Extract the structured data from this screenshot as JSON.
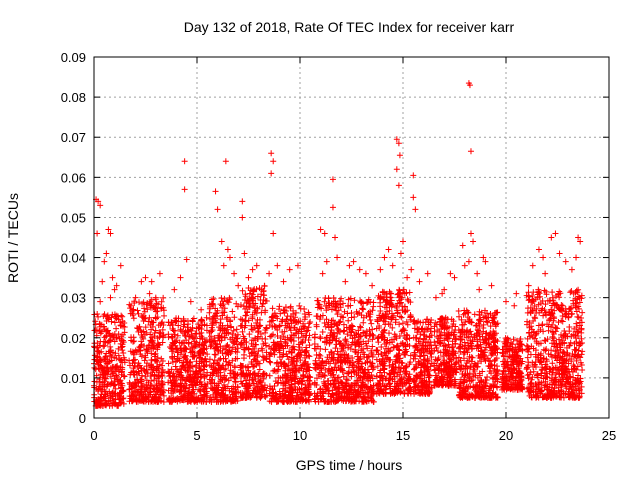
{
  "chart_data": {
    "type": "scatter",
    "title": "Day 132 of 2018, Rate Of TEC Index for receiver karr",
    "xlabel": "GPS time / hours",
    "ylabel": "ROTI / TECUs",
    "xlim": [
      0,
      25
    ],
    "ylim": [
      0,
      0.09
    ],
    "xticks": [
      0,
      5,
      10,
      15,
      20,
      25
    ],
    "xtick_labels": [
      "0",
      "5",
      "10",
      "15",
      "20",
      "25"
    ],
    "yticks": [
      0,
      0.01,
      0.02,
      0.03,
      0.04,
      0.05,
      0.06,
      0.07,
      0.08,
      0.09
    ],
    "ytick_labels": [
      "0",
      "0.01",
      "0.02",
      "0.03",
      "0.04",
      "0.05",
      "0.06",
      "0.07",
      "0.08",
      "0.09"
    ],
    "grid": true,
    "marker": "+",
    "color": "#ff0000",
    "series": [
      {
        "name": "ROTI",
        "points": [
          [
            0.1,
            0.0545
          ],
          [
            0.2,
            0.054
          ],
          [
            0.3,
            0.053
          ],
          [
            0.15,
            0.046
          ],
          [
            0.5,
            0.039
          ],
          [
            0.7,
            0.047
          ],
          [
            0.8,
            0.046
          ],
          [
            0.6,
            0.041
          ],
          [
            0.9,
            0.035
          ],
          [
            1.1,
            0.033
          ],
          [
            1.3,
            0.038
          ],
          [
            0.4,
            0.034
          ],
          [
            1.0,
            0.032
          ],
          [
            0.3,
            0.029
          ],
          [
            0.8,
            0.03
          ],
          [
            2.3,
            0.034
          ],
          [
            2.5,
            0.035
          ],
          [
            2.8,
            0.034
          ],
          [
            3.2,
            0.036
          ],
          [
            2.7,
            0.031
          ],
          [
            3.0,
            0.03
          ],
          [
            4.4,
            0.064
          ],
          [
            4.4,
            0.057
          ],
          [
            4.5,
            0.0395
          ],
          [
            4.2,
            0.035
          ],
          [
            3.9,
            0.032
          ],
          [
            4.7,
            0.029
          ],
          [
            5.2,
            0.027
          ],
          [
            5.9,
            0.0565
          ],
          [
            6.0,
            0.052
          ],
          [
            6.4,
            0.064
          ],
          [
            6.2,
            0.044
          ],
          [
            6.5,
            0.042
          ],
          [
            6.6,
            0.04
          ],
          [
            6.3,
            0.038
          ],
          [
            6.8,
            0.036
          ],
          [
            7.2,
            0.054
          ],
          [
            7.2,
            0.05
          ],
          [
            7.3,
            0.041
          ],
          [
            7.5,
            0.035
          ],
          [
            7.0,
            0.033
          ],
          [
            7.7,
            0.037
          ],
          [
            7.9,
            0.038
          ],
          [
            8.6,
            0.066
          ],
          [
            8.7,
            0.064
          ],
          [
            8.6,
            0.061
          ],
          [
            8.7,
            0.046
          ],
          [
            8.9,
            0.038
          ],
          [
            8.5,
            0.036
          ],
          [
            9.2,
            0.034
          ],
          [
            9.5,
            0.037
          ],
          [
            9.9,
            0.038
          ],
          [
            11.0,
            0.047
          ],
          [
            11.2,
            0.046
          ],
          [
            11.3,
            0.039
          ],
          [
            11.1,
            0.036
          ],
          [
            11.6,
            0.0595
          ],
          [
            11.6,
            0.0525
          ],
          [
            11.7,
            0.045
          ],
          [
            11.8,
            0.04
          ],
          [
            12.4,
            0.038
          ],
          [
            12.6,
            0.039
          ],
          [
            12.9,
            0.037
          ],
          [
            13.2,
            0.036
          ],
          [
            12.2,
            0.034
          ],
          [
            13.5,
            0.033
          ],
          [
            13.9,
            0.037
          ],
          [
            14.3,
            0.042
          ],
          [
            14.1,
            0.04
          ],
          [
            14.5,
            0.038
          ],
          [
            14.7,
            0.0695
          ],
          [
            14.8,
            0.0685
          ],
          [
            14.85,
            0.0655
          ],
          [
            14.7,
            0.062
          ],
          [
            14.8,
            0.058
          ],
          [
            15.0,
            0.044
          ],
          [
            14.9,
            0.041
          ],
          [
            15.2,
            0.035
          ],
          [
            15.5,
            0.0605
          ],
          [
            15.5,
            0.055
          ],
          [
            15.6,
            0.052
          ],
          [
            15.4,
            0.037
          ],
          [
            15.8,
            0.034
          ],
          [
            16.2,
            0.036
          ],
          [
            16.6,
            0.03
          ],
          [
            17.0,
            0.032
          ],
          [
            17.3,
            0.036
          ],
          [
            17.5,
            0.035
          ],
          [
            16.9,
            0.031
          ],
          [
            18.2,
            0.0835
          ],
          [
            18.25,
            0.083
          ],
          [
            18.3,
            0.0665
          ],
          [
            17.9,
            0.043
          ],
          [
            18.3,
            0.046
          ],
          [
            18.4,
            0.044
          ],
          [
            18.2,
            0.039
          ],
          [
            18.0,
            0.038
          ],
          [
            18.6,
            0.036
          ],
          [
            18.9,
            0.04
          ],
          [
            19.0,
            0.039
          ],
          [
            19.3,
            0.033
          ],
          [
            18.7,
            0.032
          ],
          [
            20.0,
            0.029
          ],
          [
            20.4,
            0.028
          ],
          [
            20.5,
            0.031
          ],
          [
            21.3,
            0.038
          ],
          [
            21.6,
            0.042
          ],
          [
            21.8,
            0.04
          ],
          [
            22.2,
            0.045
          ],
          [
            22.4,
            0.046
          ],
          [
            22.6,
            0.041
          ],
          [
            22.9,
            0.039
          ],
          [
            23.2,
            0.037
          ],
          [
            23.5,
            0.045
          ],
          [
            23.6,
            0.044
          ],
          [
            23.4,
            0.04
          ],
          [
            21.1,
            0.033
          ],
          [
            21.9,
            0.036
          ]
        ],
        "clusters": [
          {
            "x_start": 0.0,
            "x_end": 1.5,
            "y_min": 0.003,
            "y_max": 0.026
          },
          {
            "x_start": 1.7,
            "x_end": 3.4,
            "y_min": 0.004,
            "y_max": 0.03
          },
          {
            "x_start": 3.6,
            "x_end": 5.5,
            "y_min": 0.004,
            "y_max": 0.025
          },
          {
            "x_start": 5.6,
            "x_end": 7.0,
            "y_min": 0.004,
            "y_max": 0.03
          },
          {
            "x_start": 7.1,
            "x_end": 8.4,
            "y_min": 0.005,
            "y_max": 0.033
          },
          {
            "x_start": 8.5,
            "x_end": 10.5,
            "y_min": 0.004,
            "y_max": 0.028
          },
          {
            "x_start": 10.7,
            "x_end": 13.6,
            "y_min": 0.004,
            "y_max": 0.03
          },
          {
            "x_start": 13.7,
            "x_end": 15.4,
            "y_min": 0.006,
            "y_max": 0.032
          },
          {
            "x_start": 15.5,
            "x_end": 16.4,
            "y_min": 0.006,
            "y_max": 0.025
          },
          {
            "x_start": 16.5,
            "x_end": 17.6,
            "y_min": 0.008,
            "y_max": 0.025
          },
          {
            "x_start": 17.7,
            "x_end": 19.6,
            "y_min": 0.005,
            "y_max": 0.027
          },
          {
            "x_start": 19.8,
            "x_end": 20.8,
            "y_min": 0.007,
            "y_max": 0.02
          },
          {
            "x_start": 21.0,
            "x_end": 23.7,
            "y_min": 0.005,
            "y_max": 0.032
          }
        ]
      }
    ]
  }
}
